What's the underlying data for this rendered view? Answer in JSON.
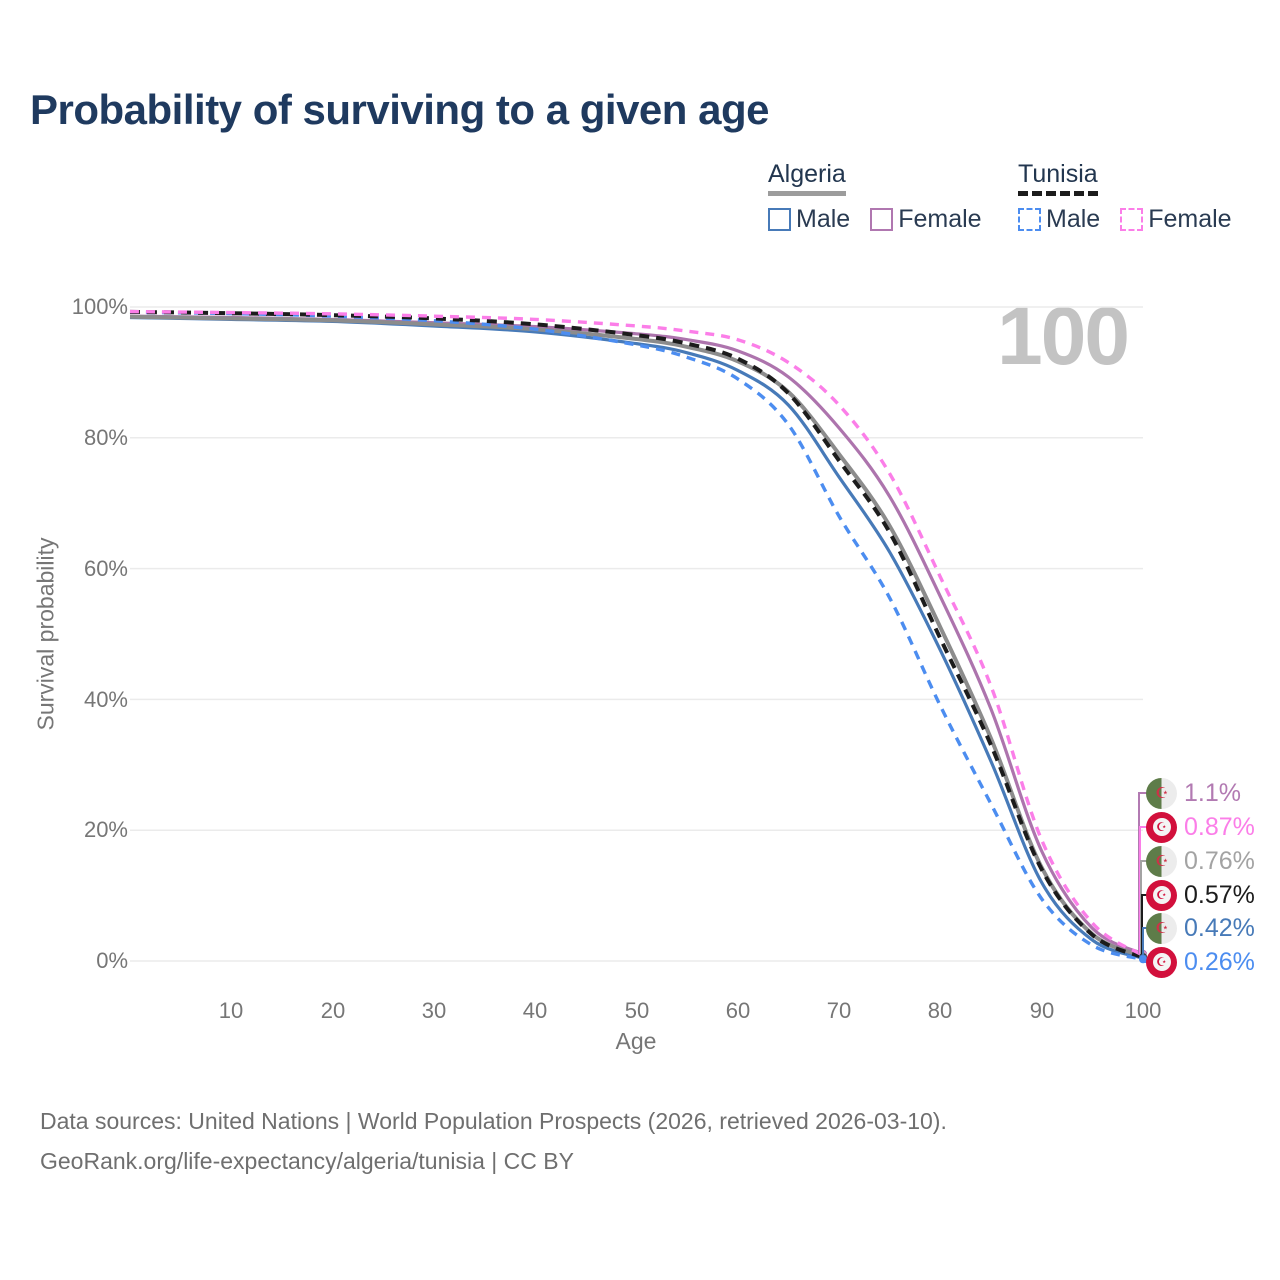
{
  "title": "Probability of surviving to a given age",
  "watermark_age": "100",
  "icons": {
    "crescent_star": "☪"
  },
  "legend": {
    "groups": [
      {
        "name": "Algeria",
        "line_style": "solid",
        "underline_color": "#9c9c9c",
        "items": [
          {
            "label": "Male",
            "color": "#477ab8"
          },
          {
            "label": "Female",
            "color": "#b077b0"
          }
        ]
      },
      {
        "name": "Tunisia",
        "line_style": "dashed",
        "underline_color": "#1c1c1c",
        "items": [
          {
            "label": "Male",
            "color": "#4c8df0"
          },
          {
            "label": "Female",
            "color": "#fb7ee8"
          }
        ]
      }
    ]
  },
  "y_axis": {
    "label": "Survival probability",
    "ticks": [
      "100%",
      "80%",
      "60%",
      "40%",
      "20%",
      "0%"
    ]
  },
  "x_axis": {
    "label": "Age",
    "ticks": [
      "10",
      "20",
      "30",
      "40",
      "50",
      "60",
      "70",
      "80",
      "90",
      "100"
    ]
  },
  "end_labels": [
    {
      "country": "Algeria",
      "flag": "algeria",
      "value": "1.1%",
      "value_pct": 1.1,
      "color": "#b27ab2"
    },
    {
      "country": "Tunisia",
      "flag": "tunisia",
      "value": "0.87%",
      "value_pct": 0.87,
      "color": "#fb7ee8"
    },
    {
      "country": "Algeria",
      "flag": "algeria",
      "value": "0.76%",
      "value_pct": 0.76,
      "color": "#a3a3a3"
    },
    {
      "country": "Tunisia",
      "flag": "tunisia",
      "value": "0.57%",
      "value_pct": 0.57,
      "color": "#1c1c1c"
    },
    {
      "country": "Algeria",
      "flag": "algeria",
      "value": "0.42%",
      "value_pct": 0.42,
      "color": "#477ab8"
    },
    {
      "country": "Tunisia",
      "flag": "tunisia",
      "value": "0.26%",
      "value_pct": 0.26,
      "color": "#4c8df0"
    }
  ],
  "footer": {
    "line1": "Data sources: United Nations | World Population Prospects (2026, retrieved 2026-03-10).",
    "line2": "GeoRank.org/life-expectancy/algeria/tunisia | CC BY"
  },
  "chart_data": {
    "type": "line",
    "title": "Probability of surviving to a given age",
    "xlabel": "Age",
    "ylabel": "Survival probability",
    "xlim": [
      0,
      100
    ],
    "ylim": [
      0,
      100
    ],
    "grid": "horizontal",
    "gridlines_pct": [
      0,
      20,
      40,
      60,
      80,
      100
    ],
    "legend_position": "top-right",
    "hovered_age": 100,
    "x": [
      0,
      10,
      20,
      30,
      40,
      50,
      55,
      60,
      65,
      70,
      75,
      80,
      85,
      90,
      95,
      100
    ],
    "series": [
      {
        "name": "Algeria Male",
        "color": "#477ab8",
        "dash": "solid",
        "width": 3.2,
        "end_label": "0.42%",
        "values": [
          98.4,
          98.1,
          97.8,
          97.1,
          96.2,
          94.4,
          93.0,
          90.3,
          85.0,
          74.0,
          62.5,
          47.5,
          30.5,
          12.0,
          3.2,
          0.42
        ]
      },
      {
        "name": "Algeria Female",
        "color": "#ad74ad",
        "dash": "solid",
        "width": 3.2,
        "end_label": "1.1%",
        "values": [
          98.6,
          98.4,
          98.1,
          97.6,
          97.0,
          95.9,
          95.0,
          93.3,
          89.3,
          81.5,
          71.0,
          55.7,
          38.5,
          16.8,
          5.0,
          1.1
        ]
      },
      {
        "name": "Algeria Both sexes",
        "color": "#8c8c8c",
        "dash": "solid",
        "width": 4,
        "end_label": "0.76%",
        "values": [
          98.5,
          98.25,
          97.95,
          97.35,
          96.6,
          95.1,
          93.9,
          91.7,
          87.0,
          77.5,
          66.5,
          51.0,
          34.0,
          14.3,
          4.1,
          0.76
        ]
      },
      {
        "name": "Tunisia Male",
        "color": "#4c8df0",
        "dash": "dashed",
        "width": 3.4,
        "end_label": "0.26%",
        "values": [
          99.2,
          99.0,
          98.6,
          97.9,
          96.6,
          94.2,
          92.3,
          89.0,
          82.0,
          68.0,
          55.5,
          39.0,
          24.0,
          9.5,
          2.4,
          0.26
        ]
      },
      {
        "name": "Tunisia Both sexes",
        "color": "#1c1c1c",
        "dash": "dashed",
        "width": 4,
        "end_label": "0.57%",
        "values": [
          99.25,
          99.05,
          98.75,
          98.25,
          97.35,
          95.7,
          94.4,
          92.1,
          86.8,
          76.5,
          65.5,
          49.3,
          33.0,
          14.0,
          4.0,
          0.57
        ]
      },
      {
        "name": "Tunisia Female",
        "color": "#fb7ee8",
        "dash": "dashed",
        "width": 3.4,
        "end_label": "0.87%",
        "values": [
          99.3,
          99.15,
          98.95,
          98.6,
          98.1,
          97.1,
          96.3,
          95.0,
          91.5,
          85.0,
          74.5,
          58.7,
          42.0,
          18.5,
          5.8,
          0.87
        ]
      }
    ]
  }
}
